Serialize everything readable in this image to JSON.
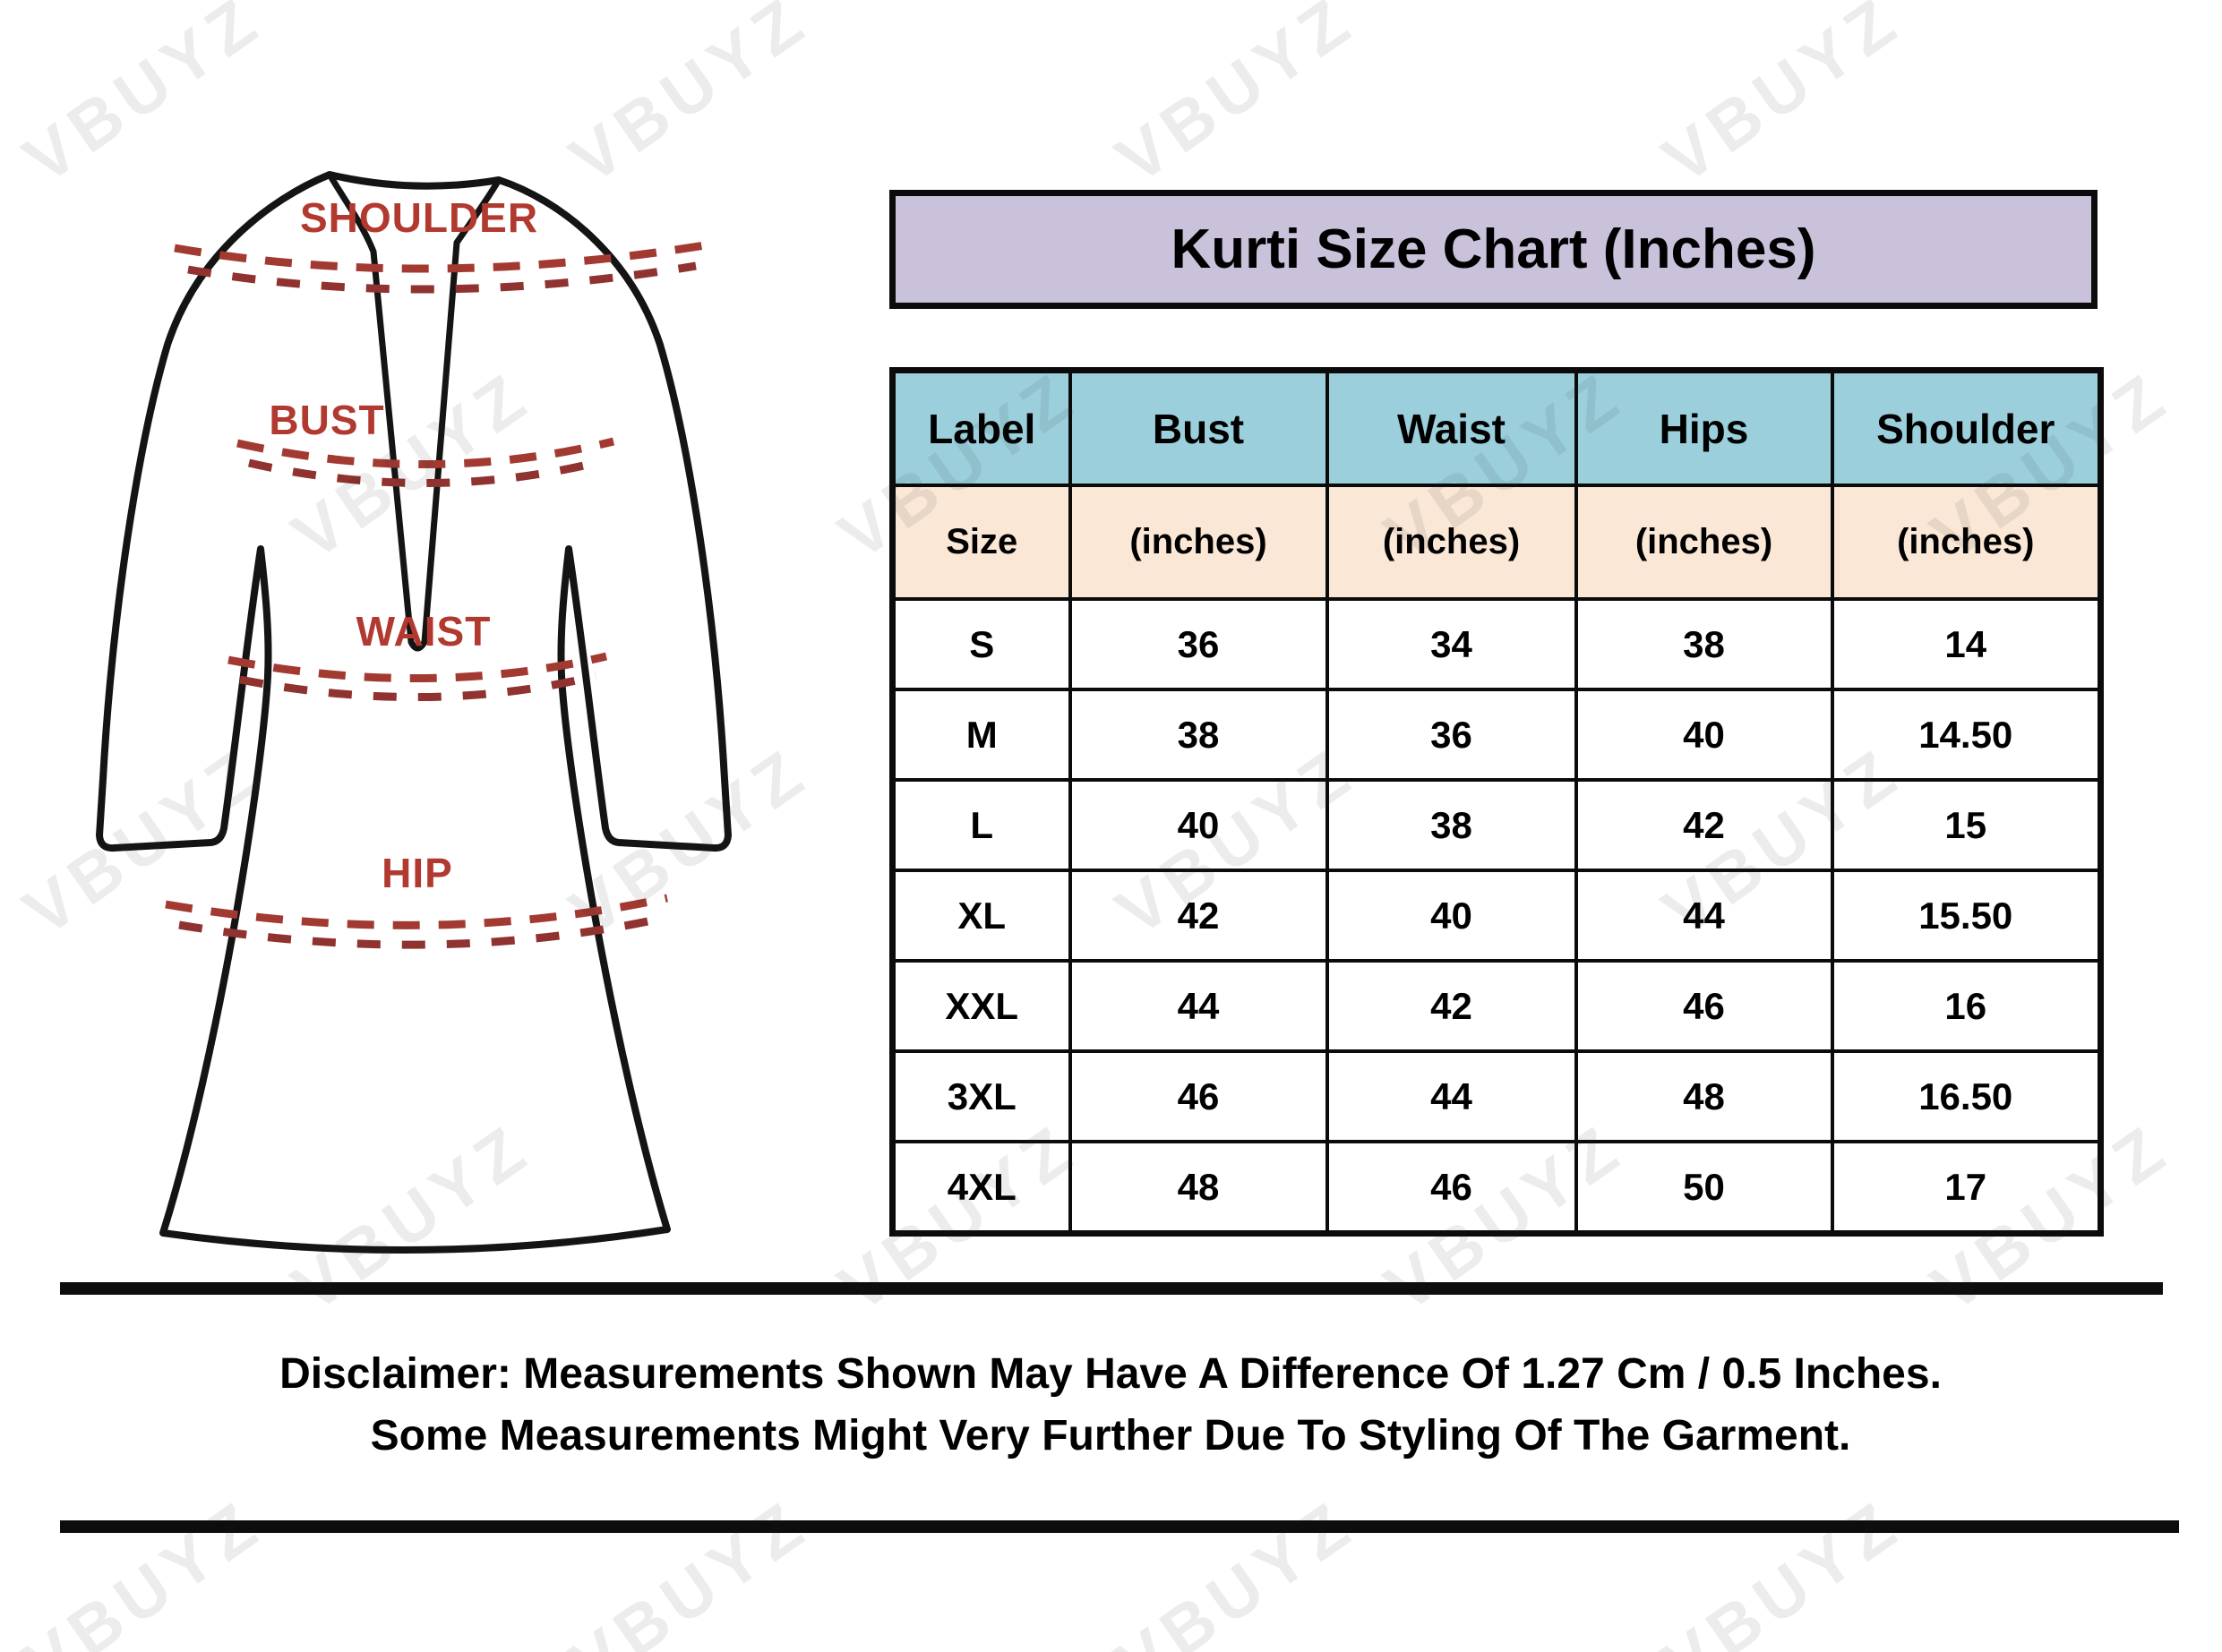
{
  "watermark": {
    "text": "VBUYZ"
  },
  "title": "Kurti Size Chart (Inches)",
  "diagram": {
    "labels": {
      "shoulder": "SHOULDER",
      "bust": "BUST",
      "waist": "WAIST",
      "hip": "HIP"
    }
  },
  "table": {
    "columns": [
      {
        "label": "Label",
        "sub": "Size"
      },
      {
        "label": "Bust",
        "sub": "(inches)"
      },
      {
        "label": "Waist",
        "sub": "(inches)"
      },
      {
        "label": "Hips",
        "sub": "(inches)"
      },
      {
        "label": "Shoulder",
        "sub": "(inches)"
      }
    ],
    "rows": [
      {
        "size": "S",
        "bust": "36",
        "waist": "34",
        "hips": "38",
        "shoulder": "14"
      },
      {
        "size": "M",
        "bust": "38",
        "waist": "36",
        "hips": "40",
        "shoulder": "14.50"
      },
      {
        "size": "L",
        "bust": "40",
        "waist": "38",
        "hips": "42",
        "shoulder": "15"
      },
      {
        "size": "XL",
        "bust": "42",
        "waist": "40",
        "hips": "44",
        "shoulder": "15.50"
      },
      {
        "size": "XXL",
        "bust": "44",
        "waist": "42",
        "hips": "46",
        "shoulder": "16"
      },
      {
        "size": "3XL",
        "bust": "46",
        "waist": "44",
        "hips": "48",
        "shoulder": "16.50"
      },
      {
        "size": "4XL",
        "bust": "48",
        "waist": "46",
        "hips": "50",
        "shoulder": "17"
      }
    ]
  },
  "disclaimer": {
    "line1": "Disclaimer: Measurements Shown May Have A Difference Of 1.27 Cm / 0.5 Inches.",
    "line2": "Some Measurements Might Very Further Due To Styling Of The Garment."
  },
  "colors": {
    "title_bg": "#cac2db",
    "header_bg": "#9bcfdc",
    "subheader_bg": "#fae7d6",
    "label_red": "#b2392f",
    "dash_red": "#a23a32"
  },
  "chart_data": {
    "type": "table",
    "title": "Kurti Size Chart (Inches)",
    "columns": [
      "Label Size",
      "Bust (inches)",
      "Waist (inches)",
      "Hips (inches)",
      "Shoulder (inches)"
    ],
    "rows": [
      [
        "S",
        36,
        34,
        38,
        14
      ],
      [
        "M",
        38,
        36,
        40,
        14.5
      ],
      [
        "L",
        40,
        38,
        42,
        15
      ],
      [
        "XL",
        42,
        40,
        44,
        15.5
      ],
      [
        "XXL",
        44,
        42,
        46,
        16
      ],
      [
        "3XL",
        46,
        44,
        48,
        16.5
      ],
      [
        "4XL",
        48,
        46,
        50,
        17
      ]
    ]
  }
}
